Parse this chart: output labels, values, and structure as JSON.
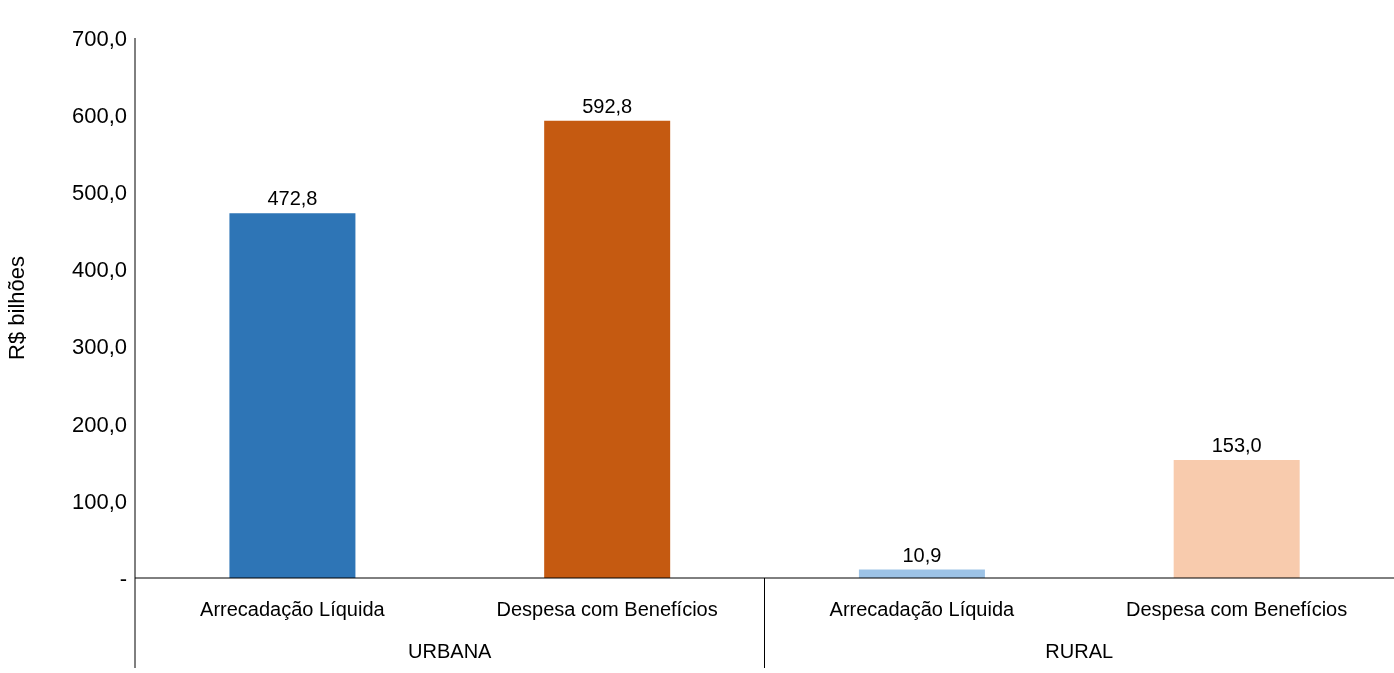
{
  "chart_data": {
    "type": "bar",
    "ylabel": "R$ bilhões",
    "categories": [
      "Arrecadação Líquida",
      "Despesa com Benefícios",
      "Arrecadação Líquida",
      "Despesa com Benefícios"
    ],
    "values": [
      472.8,
      592.8,
      10.9,
      153.0
    ],
    "value_labels": [
      "472,8",
      "592,8",
      "10,9",
      "153,0"
    ],
    "colors": [
      "#2e75b6",
      "#c55a11",
      "#9dc3e6",
      "#f8cbad"
    ],
    "annotations": [
      "URBANA",
      "RURAL"
    ],
    "ylim": [
      0,
      700
    ],
    "yticks": [
      {
        "value": 0,
        "label": "-"
      },
      {
        "value": 100,
        "label": "100,0"
      },
      {
        "value": 200,
        "label": "200,0"
      },
      {
        "value": 300,
        "label": "300,0"
      },
      {
        "value": 400,
        "label": "400,0"
      },
      {
        "value": 500,
        "label": "500,0"
      },
      {
        "value": 600,
        "label": "600,0"
      },
      {
        "value": 700,
        "label": "700,0"
      }
    ],
    "grid": false
  }
}
